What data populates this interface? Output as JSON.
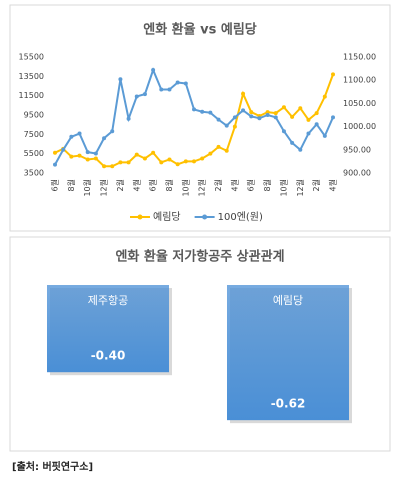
{
  "chart_data": [
    {
      "type": "line",
      "title": "엔화 환율 vs 예림당",
      "categories": [
        "6월",
        null,
        "8월",
        null,
        "10월",
        null,
        "12월",
        null,
        "2월",
        null,
        "4월",
        null,
        "6월",
        null,
        "8월",
        null,
        "10월",
        null,
        "12월",
        null,
        "2월",
        null,
        "4월",
        null,
        "6월",
        null,
        "8월",
        null,
        "10월",
        null,
        "12월",
        null,
        "2월",
        null,
        "4월"
      ],
      "series": [
        {
          "name": "예림당",
          "color": "#ffc000",
          "axis": "y",
          "values": [
            5600,
            6000,
            5200,
            5300,
            4900,
            5000,
            4200,
            4200,
            4600,
            4600,
            5400,
            5000,
            5600,
            4600,
            4900,
            4400,
            4700,
            4700,
            5000,
            5500,
            6200,
            5800,
            8300,
            11700,
            9800,
            9400,
            9800,
            9700,
            10300,
            9300,
            10200,
            9000,
            9700,
            11400,
            13700
          ]
        },
        {
          "name": "100엔(원)",
          "color": "#5b9bd5",
          "axis": "y2",
          "values": [
            918,
            950,
            978,
            985,
            945,
            942,
            975,
            990,
            1102,
            1017,
            1065,
            1070,
            1122,
            1080,
            1080,
            1095,
            1093,
            1037,
            1032,
            1030,
            1015,
            1002,
            1020,
            1035,
            1022,
            1018,
            1025,
            1020,
            990,
            965,
            950,
            985,
            1005,
            980,
            1020
          ]
        }
      ],
      "ylim": [
        3500,
        15500
      ],
      "yticks": [
        3500,
        5500,
        7500,
        9500,
        11500,
        13500,
        15500
      ],
      "y2lim": [
        900,
        1150
      ],
      "y2ticks": [
        {
          "value": 900,
          "label": "900.00"
        },
        {
          "value": 950,
          "label": "950.00"
        },
        {
          "value": 1000,
          "label": "1000.00"
        },
        {
          "value": 1050,
          "label": "1050.00"
        },
        {
          "value": 1100,
          "label": "1100.00"
        },
        {
          "value": 1150,
          "label": "1150.00"
        }
      ],
      "legend": "bottom"
    },
    {
      "type": "bar",
      "title": "엔화 환율 저가항공주 상관관계",
      "categories": [
        "제주항공",
        "예림당"
      ],
      "values": [
        -0.4,
        -0.62
      ],
      "value_labels": [
        "-0.40",
        "-0.62"
      ],
      "color": "#4a8fd6"
    }
  ],
  "source": "[출처: 버핏연구소]"
}
